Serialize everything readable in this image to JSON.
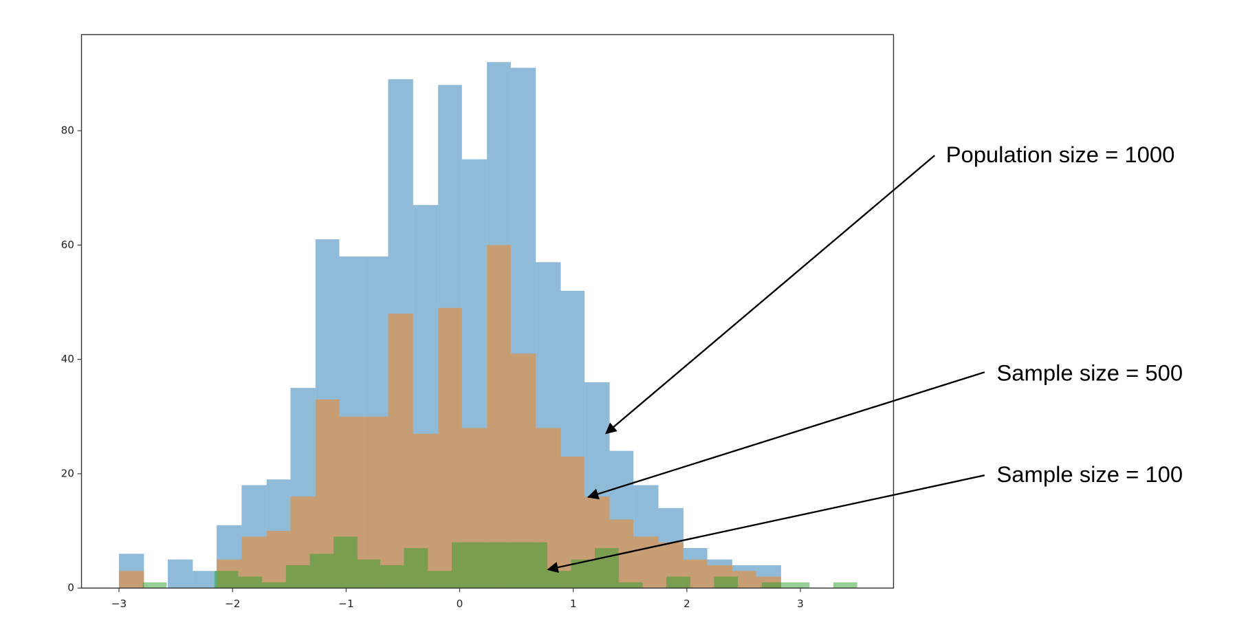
{
  "chart_data": {
    "type": "histogram",
    "xlim": [
      -3.33,
      3.82
    ],
    "ylim": [
      0,
      96.8
    ],
    "xticks": [
      {
        "value": -3,
        "label": "−3"
      },
      {
        "value": -2,
        "label": "−2"
      },
      {
        "value": -1,
        "label": "−1"
      },
      0,
      1,
      2,
      3
    ],
    "yticks": [
      0,
      20,
      40,
      60,
      80
    ],
    "series": [
      {
        "color": "#1f77b4",
        "opacity": 0.5,
        "bins": [
          -3.0,
          -2.78,
          -2.57,
          -2.35,
          -2.14,
          -1.92,
          -1.7,
          -1.49,
          -1.27,
          -1.06,
          -0.84,
          -0.63,
          -0.41,
          -0.19,
          0.02,
          0.24,
          0.45,
          0.67,
          0.89,
          1.1,
          1.32,
          1.53,
          1.75,
          1.97,
          2.18,
          2.4,
          2.61,
          2.83
        ],
        "values": [
          6,
          0,
          5,
          3,
          11,
          18,
          19,
          35,
          61,
          58,
          58,
          89,
          67,
          88,
          75,
          92,
          91,
          57,
          52,
          36,
          24,
          18,
          14,
          7,
          5,
          4,
          4
        ]
      },
      {
        "color": "#ff7f0e",
        "opacity": 0.5,
        "bins": [
          -3.0,
          -2.78,
          -2.57,
          -2.35,
          -2.14,
          -1.92,
          -1.7,
          -1.49,
          -1.27,
          -1.06,
          -0.84,
          -0.63,
          -0.41,
          -0.19,
          0.02,
          0.24,
          0.45,
          0.67,
          0.89,
          1.1,
          1.32,
          1.53,
          1.75,
          1.97,
          2.18,
          2.4,
          2.61,
          2.83
        ],
        "values": [
          3,
          0,
          0,
          0,
          5,
          9,
          10,
          16,
          33,
          30,
          30,
          48,
          27,
          49,
          28,
          60,
          41,
          28,
          23,
          16,
          12,
          9,
          8,
          5,
          4,
          3,
          2
        ]
      },
      {
        "color": "#2ca02c",
        "opacity": 0.5,
        "bins": [
          -2.79,
          -2.58,
          -2.37,
          -2.16,
          -1.95,
          -1.74,
          -1.53,
          -1.32,
          -1.11,
          -0.9,
          -0.7,
          -0.49,
          -0.28,
          -0.07,
          0.14,
          0.35,
          0.56,
          0.77,
          0.98,
          1.19,
          1.4,
          1.61,
          1.82,
          2.03,
          2.24,
          2.45,
          2.66,
          2.87,
          3.08,
          3.29,
          3.5
        ],
        "values": [
          1,
          0,
          0,
          3,
          2,
          1,
          4,
          6,
          9,
          5,
          4,
          7,
          3,
          8,
          8,
          8,
          8,
          3,
          5,
          7,
          1,
          0,
          2,
          0,
          2,
          0,
          1,
          1,
          0,
          1
        ]
      }
    ],
    "annotations": [
      "Population size = 1000",
      "Sample size = 500",
      "Sample size = 100"
    ]
  }
}
